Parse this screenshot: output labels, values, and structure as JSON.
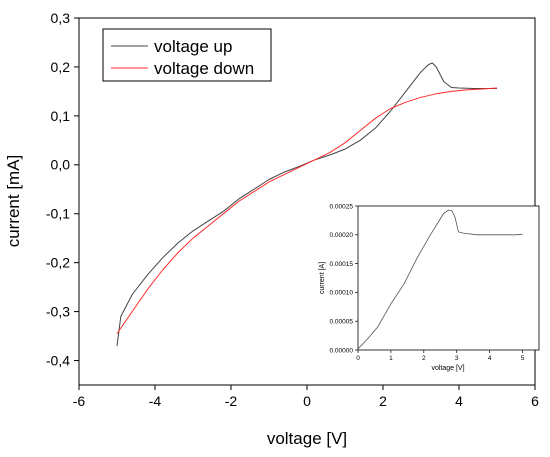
{
  "chart_data": [
    {
      "type": "line",
      "xlabel": "voltage [V]",
      "ylabel": "current [mA]",
      "xlim": [
        -6,
        6
      ],
      "ylim": [
        -0.45,
        0.3
      ],
      "x_ticks": [
        -6,
        -4,
        -2,
        0,
        2,
        4,
        6
      ],
      "x_tick_labels": [
        "-6",
        "-4",
        "-2",
        "0",
        "2",
        "4",
        "6"
      ],
      "y_ticks": [
        -0.4,
        -0.3,
        -0.2,
        -0.1,
        0.0,
        0.1,
        0.2,
        0.3
      ],
      "y_tick_labels": [
        "-0,4",
        "-0,3",
        "-0,2",
        "-0,1",
        "0,0",
        "0,1",
        "0,2",
        "0,3"
      ],
      "legend": "top-left",
      "grid": false,
      "series": [
        {
          "name": "voltage up",
          "color": "#444444",
          "x": [
            -5.0,
            -4.9,
            -4.6,
            -4.2,
            -3.8,
            -3.4,
            -3.0,
            -2.6,
            -2.2,
            -1.8,
            -1.4,
            -1.0,
            -0.6,
            -0.2,
            0.2,
            0.6,
            1.0,
            1.4,
            1.8,
            2.2,
            2.6,
            2.8,
            3.0,
            3.2,
            3.3,
            3.4,
            3.6,
            3.8,
            4.0,
            4.4,
            4.8,
            5.0
          ],
          "y": [
            -0.37,
            -0.31,
            -0.265,
            -0.225,
            -0.19,
            -0.16,
            -0.135,
            -0.115,
            -0.095,
            -0.07,
            -0.05,
            -0.03,
            -0.015,
            -0.003,
            0.01,
            0.02,
            0.032,
            0.05,
            0.075,
            0.11,
            0.15,
            0.17,
            0.19,
            0.205,
            0.208,
            0.2,
            0.17,
            0.158,
            0.157,
            0.156,
            0.156,
            0.156
          ]
        },
        {
          "name": "voltage down",
          "color": "#ff2a2a",
          "x": [
            -5.0,
            -4.6,
            -4.2,
            -3.8,
            -3.4,
            -3.0,
            -2.6,
            -2.2,
            -1.8,
            -1.4,
            -1.0,
            -0.6,
            -0.2,
            0.2,
            0.6,
            1.0,
            1.4,
            1.8,
            2.2,
            2.6,
            3.0,
            3.4,
            3.8,
            4.2,
            4.6,
            5.0
          ],
          "y": [
            -0.345,
            -0.3,
            -0.255,
            -0.215,
            -0.18,
            -0.15,
            -0.125,
            -0.1,
            -0.075,
            -0.055,
            -0.035,
            -0.02,
            -0.005,
            0.01,
            0.025,
            0.045,
            0.07,
            0.095,
            0.115,
            0.128,
            0.138,
            0.145,
            0.15,
            0.153,
            0.155,
            0.157
          ]
        }
      ]
    },
    {
      "type": "line",
      "xlabel": "voltage [V]",
      "ylabel": "current [A]",
      "xlim": [
        0,
        5.5
      ],
      "ylim": [
        0,
        0.00025
      ],
      "x_ticks": [
        0,
        1,
        2,
        3,
        4,
        5
      ],
      "x_tick_labels": [
        "0",
        "1",
        "2",
        "3",
        "4",
        "5"
      ],
      "y_ticks": [
        0,
        5e-05,
        0.0001,
        0.00015,
        0.0002,
        0.00025
      ],
      "y_tick_labels": [
        "0.00000",
        "0.00005",
        "0.00010",
        "0.00015",
        "0.00020",
        "0.00025"
      ],
      "grid": false,
      "series": [
        {
          "color": "#555555",
          "x": [
            0,
            0.3,
            0.6,
            1.0,
            1.4,
            1.8,
            2.2,
            2.6,
            2.75,
            2.85,
            2.95,
            3.05,
            3.2,
            3.6,
            4.0,
            4.4,
            4.8,
            5.0
          ],
          "y": [
            2e-06,
            2e-05,
            4e-05,
            8e-05,
            0.000115,
            0.00016,
            0.0002,
            0.000237,
            0.000243,
            0.000242,
            0.00023,
            0.000205,
            0.000203,
            0.0002,
            0.0002,
            0.0002,
            0.0002,
            0.000201
          ]
        }
      ]
    }
  ]
}
